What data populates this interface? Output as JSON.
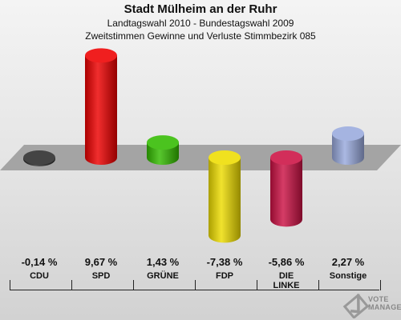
{
  "title": "Stadt Mülheim an der Ruhr",
  "subtitle1": "Landtagswahl 2010 - Bundestagswahl 2009",
  "subtitle2": "Zweitstimmen Gewinne und Verluste Stimmbezirk 085",
  "logo": {
    "line1": "VOTE",
    "line2": "MANAGER",
    "icon": "ballot-check-icon"
  },
  "chart_data": {
    "type": "bar",
    "title": "Stadt Mülheim an der Ruhr",
    "subtitle": "Zweitstimmen Gewinne und Verluste Stimmbezirk 085",
    "categories": [
      "CDU",
      "SPD",
      "GRÜNE",
      "FDP",
      "DIE LINKE",
      "Sonstige"
    ],
    "category_lines": [
      [
        "CDU"
      ],
      [
        "SPD"
      ],
      [
        "GRÜNE"
      ],
      [
        "FDP"
      ],
      [
        "DIE",
        "LINKE"
      ],
      [
        "Sonstige"
      ]
    ],
    "values": [
      -0.14,
      9.67,
      1.43,
      -7.38,
      -5.86,
      2.27
    ],
    "value_labels": [
      "-0,14 %",
      "9,67 %",
      "1,43 %",
      "-7,38 %",
      "-5,86 %",
      "2,27 %"
    ],
    "colors": [
      "#2a2a2a",
      "#ee0000",
      "#33bb00",
      "#eedd00",
      "#cc1144",
      "#99aadd"
    ],
    "ylim": [
      -8,
      10
    ]
  }
}
